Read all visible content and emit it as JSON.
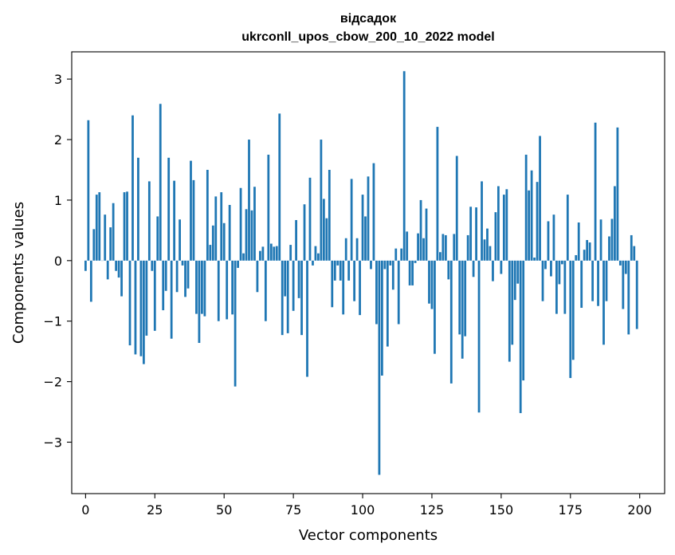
{
  "chart_data": {
    "type": "bar",
    "title_line1": "відсадок",
    "title_line2": "ukrconll_upos_cbow_200_10_2022 model",
    "xlabel": "Vector components",
    "ylabel": "Components values",
    "xlim": [
      -5,
      209
    ],
    "ylim": [
      -3.85,
      3.45
    ],
    "bar_color": "#1f77b4",
    "xticks": [
      0,
      25,
      50,
      75,
      100,
      125,
      150,
      175,
      200
    ],
    "xtick_labels": [
      "0",
      "25",
      "50",
      "75",
      "100",
      "125",
      "150",
      "175",
      "200"
    ],
    "yticks": [
      -3,
      -2,
      -1,
      0,
      1,
      2,
      3
    ],
    "ytick_labels": [
      "−3",
      "−2",
      "−1",
      "0",
      "1",
      "2",
      "3"
    ],
    "values": [
      -0.17,
      2.32,
      -0.68,
      0.52,
      1.09,
      1.13,
      0.0,
      0.76,
      -0.31,
      0.55,
      0.95,
      -0.17,
      -0.28,
      -0.59,
      1.13,
      1.14,
      -1.4,
      2.4,
      -1.55,
      1.7,
      -1.58,
      -1.71,
      -1.24,
      1.31,
      -0.17,
      -1.16,
      0.73,
      2.59,
      -0.82,
      -0.5,
      1.7,
      -1.29,
      1.32,
      -0.52,
      0.68,
      -0.08,
      -0.6,
      -0.46,
      1.65,
      1.33,
      -0.88,
      -1.36,
      -0.88,
      -0.92,
      1.5,
      0.26,
      0.58,
      1.06,
      -1.0,
      1.13,
      0.62,
      -0.97,
      0.92,
      -0.89,
      -2.08,
      -0.12,
      1.2,
      0.12,
      0.85,
      2.0,
      0.83,
      1.22,
      -0.52,
      0.16,
      0.23,
      -1.0,
      1.75,
      0.28,
      0.23,
      0.24,
      2.43,
      -1.23,
      -0.59,
      -1.2,
      0.26,
      -0.83,
      0.67,
      -0.62,
      -1.23,
      0.93,
      -1.92,
      1.37,
      -0.08,
      0.24,
      0.12,
      2.0,
      1.02,
      0.7,
      1.5,
      -0.77,
      -0.33,
      -0.08,
      -0.33,
      -0.89,
      0.37,
      -0.33,
      1.35,
      -0.67,
      0.37,
      -0.9,
      1.09,
      0.73,
      1.39,
      -0.14,
      1.61,
      -1.05,
      -3.54,
      -1.9,
      -0.14,
      -1.42,
      -0.08,
      -0.48,
      0.2,
      -1.05,
      0.2,
      3.13,
      0.48,
      -0.41,
      -0.41,
      -0.04,
      0.45,
      1.0,
      0.37,
      0.86,
      -0.71,
      -0.8,
      -1.54,
      2.21,
      0.14,
      0.44,
      0.42,
      -0.31,
      -2.03,
      0.44,
      1.73,
      -1.22,
      -1.62,
      -1.25,
      0.42,
      0.89,
      -0.27,
      0.88,
      -2.51,
      1.31,
      0.35,
      0.53,
      0.24,
      -0.34,
      0.8,
      1.23,
      -0.22,
      1.09,
      1.18,
      -1.67,
      -1.39,
      -0.65,
      -0.38,
      -2.52,
      -1.98,
      1.75,
      1.16,
      1.49,
      0.05,
      1.3,
      2.06,
      -0.67,
      -0.14,
      0.65,
      -0.26,
      0.76,
      -0.88,
      -0.39,
      -0.06,
      -0.88,
      1.09,
      -1.94,
      -1.64,
      0.09,
      0.63,
      -0.78,
      0.18,
      0.34,
      0.3,
      -0.67,
      2.28,
      -0.75,
      0.68,
      -1.39,
      -0.67,
      0.4,
      0.69,
      1.23,
      2.2,
      -0.08,
      -0.8,
      -0.22,
      -1.22,
      0.42,
      0.24,
      -1.13
    ]
  }
}
